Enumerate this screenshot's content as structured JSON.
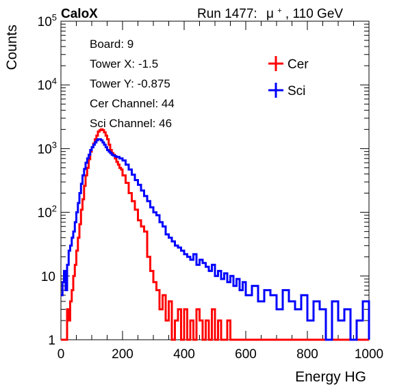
{
  "header": {
    "experiment": "CaloX",
    "run_label": "Run 1477:",
    "beam_particle": "μ",
    "beam_charge": "+",
    "beam_energy": ", 110 GeV"
  },
  "info_box": {
    "board": "Board: 9",
    "tower_x": "Tower X: -1.5",
    "tower_y": "Tower Y: -0.875",
    "cer_channel": "Cer Channel: 44",
    "sci_channel": "Sci Channel: 46"
  },
  "chart_data": {
    "type": "line",
    "title": "",
    "xlabel": "Energy HG",
    "ylabel": "Counts",
    "xlim": [
      0,
      1000
    ],
    "ylim": [
      1,
      100000
    ],
    "ylog": true,
    "grid": false,
    "legend_position": "top-right",
    "x_ticks": [
      0,
      200,
      400,
      600,
      800,
      1000
    ],
    "x_tick_labels": [
      "0",
      "200",
      "400",
      "600",
      "800",
      "1000"
    ],
    "y_ticks": [
      1,
      10,
      100,
      1000,
      10000,
      100000
    ],
    "y_tick_labels": [
      {
        "base": "1",
        "exp": ""
      },
      {
        "base": "10",
        "exp": ""
      },
      {
        "base": "10",
        "exp": "2"
      },
      {
        "base": "10",
        "exp": "3"
      },
      {
        "base": "10",
        "exp": "4"
      },
      {
        "base": "10",
        "exp": "5"
      }
    ],
    "series": [
      {
        "name": "Cer",
        "color": "#ff0000",
        "x": [
          0,
          20,
          25,
          30,
          35,
          40,
          45,
          50,
          55,
          60,
          65,
          70,
          75,
          80,
          85,
          90,
          95,
          100,
          105,
          110,
          115,
          120,
          125,
          130,
          135,
          140,
          145,
          150,
          155,
          160,
          165,
          170,
          175,
          180,
          185,
          190,
          195,
          200,
          210,
          220,
          230,
          240,
          250,
          260,
          270,
          280,
          290,
          300,
          310,
          320,
          330,
          340,
          350,
          360,
          370,
          380,
          390,
          400,
          410,
          420,
          430,
          440,
          450,
          460,
          470,
          480,
          490,
          500,
          510,
          520,
          530,
          540,
          550,
          560,
          570,
          580,
          590,
          600,
          700,
          800,
          900,
          1000
        ],
        "y": [
          1,
          3,
          2,
          4,
          6,
          10,
          15,
          25,
          40,
          65,
          110,
          160,
          260,
          380,
          500,
          680,
          900,
          1050,
          1200,
          1400,
          1600,
          1850,
          1950,
          2000,
          1950,
          1800,
          1600,
          1400,
          1150,
          950,
          850,
          800,
          700,
          620,
          560,
          500,
          470,
          380,
          290,
          200,
          150,
          110,
          75,
          60,
          50,
          20,
          12,
          8,
          6,
          3,
          5,
          2,
          4,
          1,
          2,
          3,
          1,
          3,
          1,
          2,
          1,
          3,
          2,
          1,
          2,
          1,
          3,
          1,
          2,
          1,
          1,
          2,
          1,
          1,
          1,
          1,
          1,
          1,
          1,
          1,
          1,
          1
        ]
      },
      {
        "name": "Sci",
        "color": "#0000ff",
        "x": [
          0,
          5,
          10,
          15,
          20,
          25,
          30,
          35,
          40,
          45,
          50,
          55,
          60,
          65,
          70,
          75,
          80,
          85,
          90,
          95,
          100,
          105,
          110,
          115,
          120,
          125,
          130,
          135,
          140,
          145,
          150,
          155,
          160,
          165,
          170,
          175,
          180,
          190,
          200,
          210,
          220,
          230,
          240,
          250,
          260,
          270,
          280,
          290,
          300,
          310,
          320,
          330,
          340,
          350,
          360,
          370,
          380,
          390,
          400,
          410,
          420,
          430,
          440,
          450,
          460,
          470,
          480,
          490,
          500,
          510,
          520,
          530,
          540,
          550,
          560,
          570,
          580,
          590,
          600,
          620,
          640,
          660,
          680,
          700,
          720,
          740,
          760,
          780,
          800,
          820,
          840,
          860,
          880,
          900,
          920,
          940,
          960,
          980,
          1000
        ],
        "y": [
          5,
          8,
          12,
          6,
          15,
          25,
          30,
          40,
          50,
          70,
          100,
          140,
          200,
          280,
          380,
          480,
          600,
          700,
          800,
          950,
          1050,
          1150,
          1250,
          1350,
          1400,
          1400,
          1350,
          1250,
          1150,
          1050,
          950,
          900,
          850,
          800,
          780,
          760,
          740,
          700,
          650,
          560,
          470,
          390,
          320,
          270,
          220,
          180,
          150,
          120,
          100,
          90,
          70,
          60,
          45,
          40,
          35,
          30,
          28,
          25,
          22,
          20,
          18,
          22,
          15,
          18,
          16,
          14,
          12,
          15,
          10,
          12,
          9,
          11,
          8,
          10,
          7,
          9,
          6,
          8,
          5,
          7,
          4,
          6,
          5,
          3,
          6,
          4,
          3,
          5,
          2,
          4,
          3,
          1,
          4,
          2,
          3,
          1,
          2,
          4,
          1
        ]
      }
    ]
  }
}
